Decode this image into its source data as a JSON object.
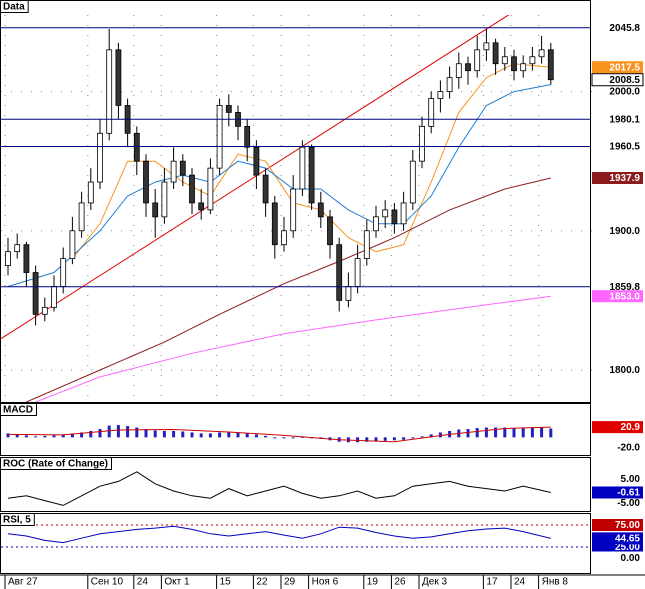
{
  "chart_data": [
    {
      "type": "candlestick",
      "title": "Data",
      "categories": [
        "Авг 27",
        null,
        null,
        null,
        null,
        null,
        null,
        null,
        null,
        "Сен 10",
        null,
        null,
        null,
        null,
        "24",
        null,
        null,
        "Окт 1",
        null,
        null,
        null,
        null,
        null,
        "15",
        null,
        null,
        null,
        "22",
        null,
        null,
        "29",
        null,
        null,
        "Ноя 6",
        null,
        null,
        null,
        null,
        null,
        "19",
        null,
        null,
        "26",
        null,
        null,
        "Дек 3",
        null,
        null,
        null,
        null,
        null,
        null,
        "17",
        null,
        null,
        "24",
        null,
        null,
        "Янв 8",
        null
      ],
      "values": [
        [
          1875,
          1895,
          1868,
          1885
        ],
        [
          1885,
          1898,
          1880,
          1890
        ],
        [
          1890,
          1892,
          1860,
          1870
        ],
        [
          1870,
          1875,
          1832,
          1840
        ],
        [
          1840,
          1852,
          1835,
          1845
        ],
        [
          1845,
          1868,
          1842,
          1860
        ],
        [
          1860,
          1888,
          1855,
          1880
        ],
        [
          1880,
          1910,
          1876,
          1900
        ],
        [
          1900,
          1928,
          1895,
          1920
        ],
        [
          1920,
          1945,
          1915,
          1935
        ],
        [
          1935,
          1980,
          1930,
          1970
        ],
        [
          1970,
          2045,
          1965,
          2030
        ],
        [
          2030,
          2035,
          1980,
          1990
        ],
        [
          1990,
          1995,
          1960,
          1970
        ],
        [
          1970,
          1975,
          1940,
          1950
        ],
        [
          1950,
          1955,
          1910,
          1920
        ],
        [
          1920,
          1930,
          1895,
          1910
        ],
        [
          1910,
          1945,
          1905,
          1935
        ],
        [
          1935,
          1960,
          1930,
          1950
        ],
        [
          1950,
          1955,
          1932,
          1940
        ],
        [
          1940,
          1945,
          1912,
          1920
        ],
        [
          1920,
          1930,
          1908,
          1915
        ],
        [
          1915,
          1952,
          1912,
          1945
        ],
        [
          1945,
          1995,
          1940,
          1990
        ],
        [
          1990,
          1998,
          1975,
          1985
        ],
        [
          1985,
          1990,
          1965,
          1975
        ],
        [
          1975,
          1980,
          1950,
          1960
        ],
        [
          1960,
          1965,
          1930,
          1940
        ],
        [
          1940,
          1945,
          1910,
          1920
        ],
        [
          1920,
          1925,
          1880,
          1890
        ],
        [
          1890,
          1910,
          1885,
          1900
        ],
        [
          1900,
          1940,
          1895,
          1930
        ],
        [
          1930,
          1965,
          1925,
          1960
        ],
        [
          1960,
          1962,
          1915,
          1920
        ],
        [
          1920,
          1928,
          1902,
          1910
        ],
        [
          1910,
          1915,
          1880,
          1890
        ],
        [
          1890,
          1895,
          1842,
          1850
        ],
        [
          1850,
          1870,
          1845,
          1860
        ],
        [
          1860,
          1890,
          1855,
          1880
        ],
        [
          1880,
          1908,
          1875,
          1900
        ],
        [
          1900,
          1918,
          1895,
          1910
        ],
        [
          1910,
          1922,
          1902,
          1915
        ],
        [
          1915,
          1920,
          1898,
          1905
        ],
        [
          1905,
          1928,
          1900,
          1920
        ],
        [
          1920,
          1958,
          1915,
          1950
        ],
        [
          1950,
          1982,
          1945,
          1975
        ],
        [
          1975,
          2000,
          1970,
          1995
        ],
        [
          1995,
          2008,
          1985,
          2000
        ],
        [
          2000,
          2018,
          1995,
          2010
        ],
        [
          2010,
          2028,
          2002,
          2020
        ],
        [
          2020,
          2025,
          2005,
          2015
        ],
        [
          2015,
          2040,
          2010,
          2030
        ],
        [
          2030,
          2045,
          2022,
          2035
        ],
        [
          2035,
          2038,
          2012,
          2020
        ],
        [
          2020,
          2032,
          2015,
          2025
        ],
        [
          2025,
          2030,
          2008,
          2015
        ],
        [
          2015,
          2026,
          2010,
          2020
        ],
        [
          2020,
          2032,
          2015,
          2025
        ],
        [
          2025,
          2040,
          2020,
          2030
        ],
        [
          2030,
          2035,
          2005,
          2008.5
        ]
      ],
      "end_label": "2008.5",
      "up_color": "#ffffff",
      "down_color": "#333333",
      "ylim": [
        1777,
        2055
      ],
      "yticks": [
        {
          "value": 2000,
          "label": "2000.0"
        },
        {
          "value": 1900,
          "label": "1900.0"
        },
        {
          "value": 1800,
          "label": "1800.0"
        }
      ],
      "grid": true,
      "levels": [
        2045.8,
        1980.1,
        1960.5,
        1859.8
      ],
      "level_color": "#000080",
      "trendline": {
        "color": "#e00000",
        "x": [
          0,
          57
        ],
        "values": [
          1822,
          2066
        ]
      },
      "series": [
        {
          "color": "#f7931e",
          "x": [
            7,
            10,
            13,
            16,
            19,
            22,
            25,
            28,
            31,
            34,
            37,
            40,
            43,
            46,
            49,
            52,
            55,
            59
          ],
          "values": [
            1880,
            1905,
            1950,
            1950,
            1935,
            1925,
            1955,
            1950,
            1920,
            1915,
            1895,
            1885,
            1890,
            1935,
            1985,
            2010,
            2020,
            2017.5
          ],
          "end_label": "2017.5"
        },
        {
          "color": "#1e7fd6",
          "x": [
            0,
            5,
            10,
            13,
            16,
            19,
            22,
            25,
            28,
            31,
            34,
            37,
            40,
            43,
            46,
            49,
            52,
            55,
            59
          ],
          "values": [
            1860,
            1870,
            1900,
            1925,
            1935,
            1940,
            1935,
            1950,
            1945,
            1930,
            1930,
            1915,
            1905,
            1905,
            1925,
            1960,
            1990,
            2000,
            2005
          ]
        },
        {
          "color": "#8b1a1a",
          "x": [
            2,
            10,
            17,
            23,
            30,
            36,
            42,
            48,
            54,
            59
          ],
          "values": [
            1777,
            1800,
            1820,
            1840,
            1862,
            1878,
            1895,
            1915,
            1930,
            1937.9
          ],
          "end_label": "1937.9"
        },
        {
          "color": "#ff66ff",
          "x": [
            3,
            10,
            20,
            30,
            40,
            50,
            59
          ],
          "values": [
            1777,
            1795,
            1812,
            1826,
            1836,
            1845,
            1853
          ],
          "end_label": "1853.0"
        }
      ]
    },
    {
      "type": "bar",
      "title": "MACD",
      "color": "#2020c0",
      "values": [
        8,
        6,
        4,
        2,
        3,
        4,
        6,
        8,
        10,
        13,
        17,
        24,
        25,
        23,
        20,
        17,
        14,
        13,
        13,
        12,
        10,
        8,
        8,
        10,
        11,
        10,
        8,
        6,
        3,
        0,
        -2,
        -1,
        1,
        -1,
        -3,
        -6,
        -9,
        -10,
        -10,
        -9,
        -8,
        -7,
        -6,
        -5,
        -2,
        2,
        6,
        10,
        13,
        16,
        17,
        19,
        20,
        20,
        20,
        19,
        19,
        19,
        20,
        18
      ],
      "ylim": [
        -36,
        66
      ],
      "yticks": [
        {
          "value": -20,
          "label": "-20.0"
        }
      ],
      "series": [
        {
          "color": "#d00000",
          "x": [
            0,
            6,
            12,
            18,
            24,
            30,
            36,
            42,
            48,
            54,
            59
          ],
          "values": [
            6,
            5,
            15,
            16,
            11,
            4,
            -5,
            -9,
            6,
            18,
            20.9
          ],
          "end_color": "#e00000"
        }
      ]
    },
    {
      "type": "line",
      "title": "ROC (Rate of Change)",
      "ylim": [
        -7.9,
        12.9
      ],
      "yticks": [
        {
          "value": 5,
          "label": "5.00"
        },
        {
          "value": -5,
          "label": "-5.00"
        }
      ],
      "series": [
        {
          "color": "#000000",
          "x": [
            0,
            2,
            4,
            6,
            8,
            10,
            12,
            14,
            16,
            18,
            20,
            22,
            24,
            26,
            28,
            30,
            32,
            34,
            36,
            38,
            40,
            42,
            44,
            46,
            48,
            50,
            52,
            54,
            56,
            59
          ],
          "values": [
            -3,
            -2,
            -4,
            -6,
            -2,
            2,
            4,
            8,
            3,
            0,
            -2,
            -3,
            1,
            -2,
            0,
            2,
            -1,
            -3,
            -2,
            0,
            -3,
            -2,
            2,
            3,
            4,
            2,
            1,
            0,
            2,
            -0.61
          ],
          "end_color": "#0000c0"
        }
      ]
    },
    {
      "type": "line",
      "title": "RSI, 5",
      "ylim": [
        0,
        100
      ],
      "yticks": [
        {
          "value": 75,
          "label": "75.00",
          "color": "#c00000"
        },
        {
          "value": 25,
          "label": "25.00",
          "color": "#0000c0"
        },
        {
          "value": 0,
          "label": "0.00"
        }
      ],
      "series": [
        {
          "color": "#0000c0",
          "x": [
            0,
            2,
            4,
            6,
            8,
            10,
            12,
            14,
            16,
            18,
            20,
            22,
            24,
            26,
            28,
            30,
            32,
            34,
            36,
            38,
            40,
            42,
            44,
            46,
            48,
            50,
            52,
            54,
            56,
            59
          ],
          "values": [
            55,
            50,
            40,
            35,
            45,
            55,
            60,
            65,
            68,
            72,
            65,
            55,
            50,
            55,
            60,
            52,
            45,
            55,
            70,
            68,
            58,
            50,
            45,
            48,
            55,
            62,
            66,
            68,
            60,
            44.65
          ],
          "end_color": "#0000c0"
        }
      ]
    }
  ]
}
